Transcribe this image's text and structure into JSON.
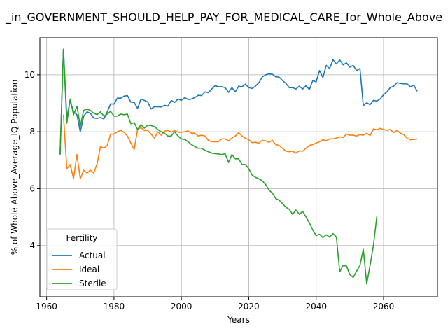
{
  "chart_data": {
    "type": "line",
    "title": "_in_GOVERNMENT_SHOULD_HELP_PAY_FOR_MEDICAL_CARE_for_Whole_Above",
    "xlabel": "Years",
    "ylabel": "% of Whole Above_Average_IQ Population",
    "xlim": [
      1958,
      2076
    ],
    "ylim": [
      2.2,
      11.3
    ],
    "xticks": [
      1960,
      1980,
      2000,
      2020,
      2040,
      2060
    ],
    "yticks": [
      4,
      6,
      8,
      10
    ],
    "grid": true,
    "legend": {
      "title": "Fertility",
      "position": "lower-left"
    },
    "series": [
      {
        "name": "Actual",
        "color": "#1f77b4",
        "points": [
          [
            1964,
            7.2
          ],
          [
            1965,
            10.9
          ],
          [
            1966,
            8.5
          ],
          [
            1967,
            9.1
          ],
          [
            1968,
            8.7
          ],
          [
            1969,
            8.6
          ],
          [
            1970,
            8.0
          ],
          [
            1971,
            8.55
          ],
          [
            1972,
            8.7
          ],
          [
            1973,
            8.65
          ],
          [
            1974,
            8.48
          ],
          [
            1975,
            8.47
          ],
          [
            1976,
            8.5
          ],
          [
            1977,
            8.45
          ],
          [
            1978,
            8.7
          ],
          [
            1979,
            8.98
          ],
          [
            1980,
            8.97
          ],
          [
            1981,
            9.18
          ],
          [
            1982,
            9.18
          ],
          [
            1983,
            9.25
          ],
          [
            1984,
            9.27
          ],
          [
            1985,
            9.04
          ],
          [
            1986,
            9.03
          ],
          [
            1987,
            8.82
          ],
          [
            1988,
            9.15
          ],
          [
            1989,
            9.1
          ],
          [
            1990,
            9.05
          ],
          [
            1991,
            8.8
          ],
          [
            1992,
            8.88
          ],
          [
            1993,
            8.88
          ],
          [
            1994,
            8.87
          ],
          [
            1995,
            8.93
          ],
          [
            1996,
            8.9
          ],
          [
            1997,
            9.1
          ],
          [
            1998,
            9.03
          ],
          [
            1999,
            9.15
          ],
          [
            2000,
            9.1
          ],
          [
            2001,
            9.2
          ],
          [
            2002,
            9.13
          ],
          [
            2003,
            9.15
          ],
          [
            2004,
            9.2
          ],
          [
            2005,
            9.28
          ],
          [
            2006,
            9.27
          ],
          [
            2007,
            9.4
          ],
          [
            2008,
            9.37
          ],
          [
            2009,
            9.5
          ],
          [
            2010,
            9.62
          ],
          [
            2011,
            9.58
          ],
          [
            2012,
            9.58
          ],
          [
            2013,
            9.55
          ],
          [
            2014,
            9.38
          ],
          [
            2015,
            9.55
          ],
          [
            2016,
            9.4
          ],
          [
            2017,
            9.6
          ],
          [
            2018,
            9.58
          ],
          [
            2019,
            9.67
          ],
          [
            2020,
            9.55
          ],
          [
            2021,
            9.52
          ],
          [
            2022,
            9.6
          ],
          [
            2023,
            9.72
          ],
          [
            2024,
            9.92
          ],
          [
            2025,
            10.0
          ],
          [
            2026,
            10.03
          ],
          [
            2027,
            10.02
          ],
          [
            2028,
            9.93
          ],
          [
            2029,
            9.92
          ],
          [
            2030,
            9.8
          ],
          [
            2031,
            9.7
          ],
          [
            2032,
            9.55
          ],
          [
            2033,
            9.55
          ],
          [
            2034,
            9.5
          ],
          [
            2035,
            9.6
          ],
          [
            2036,
            9.5
          ],
          [
            2037,
            9.62
          ],
          [
            2038,
            9.48
          ],
          [
            2039,
            9.8
          ],
          [
            2040,
            9.75
          ],
          [
            2041,
            10.15
          ],
          [
            2042,
            9.9
          ],
          [
            2043,
            10.33
          ],
          [
            2044,
            10.22
          ],
          [
            2045,
            10.53
          ],
          [
            2046,
            10.38
          ],
          [
            2047,
            10.52
          ],
          [
            2048,
            10.35
          ],
          [
            2049,
            10.42
          ],
          [
            2050,
            10.27
          ],
          [
            2051,
            10.33
          ],
          [
            2052,
            10.15
          ],
          [
            2053,
            10.22
          ],
          [
            2054,
            8.92
          ],
          [
            2055,
            9.02
          ],
          [
            2056,
            8.95
          ],
          [
            2057,
            9.1
          ],
          [
            2058,
            9.08
          ],
          [
            2059,
            9.15
          ],
          [
            2060,
            9.3
          ],
          [
            2061,
            9.4
          ],
          [
            2062,
            9.55
          ],
          [
            2063,
            9.6
          ],
          [
            2064,
            9.72
          ],
          [
            2065,
            9.7
          ],
          [
            2066,
            9.68
          ],
          [
            2067,
            9.68
          ],
          [
            2068,
            9.58
          ],
          [
            2069,
            9.63
          ],
          [
            2070,
            9.42
          ]
        ]
      },
      {
        "name": "Ideal",
        "color": "#ff7f0e",
        "points": [
          [
            1965,
            8.6
          ],
          [
            1966,
            6.7
          ],
          [
            1967,
            6.85
          ],
          [
            1968,
            6.35
          ],
          [
            1969,
            7.2
          ],
          [
            1970,
            6.35
          ],
          [
            1971,
            6.65
          ],
          [
            1972,
            6.55
          ],
          [
            1973,
            6.65
          ],
          [
            1974,
            6.55
          ],
          [
            1975,
            6.88
          ],
          [
            1976,
            7.48
          ],
          [
            1977,
            7.42
          ],
          [
            1978,
            7.52
          ],
          [
            1979,
            7.92
          ],
          [
            1980,
            7.92
          ],
          [
            1981,
            8.0
          ],
          [
            1982,
            8.05
          ],
          [
            1983,
            7.98
          ],
          [
            1984,
            7.85
          ],
          [
            1985,
            7.6
          ],
          [
            1986,
            7.38
          ],
          [
            1987,
            8.08
          ],
          [
            1988,
            8.15
          ],
          [
            1989,
            8.05
          ],
          [
            1990,
            8.05
          ],
          [
            1991,
            7.92
          ],
          [
            1992,
            7.78
          ],
          [
            1993,
            8.0
          ],
          [
            1994,
            7.88
          ],
          [
            1995,
            8.02
          ],
          [
            1996,
            8.05
          ],
          [
            1997,
            7.98
          ],
          [
            1998,
            8.05
          ],
          [
            1999,
            7.98
          ],
          [
            2000,
            7.98
          ],
          [
            2001,
            8.0
          ],
          [
            2002,
            8.03
          ],
          [
            2003,
            7.95
          ],
          [
            2004,
            7.95
          ],
          [
            2005,
            7.85
          ],
          [
            2006,
            7.88
          ],
          [
            2007,
            7.85
          ],
          [
            2008,
            7.7
          ],
          [
            2009,
            7.65
          ],
          [
            2010,
            7.65
          ],
          [
            2011,
            7.65
          ],
          [
            2012,
            7.75
          ],
          [
            2013,
            7.75
          ],
          [
            2014,
            7.68
          ],
          [
            2015,
            7.78
          ],
          [
            2016,
            7.85
          ],
          [
            2017,
            7.97
          ],
          [
            2018,
            7.85
          ],
          [
            2019,
            7.77
          ],
          [
            2020,
            7.72
          ],
          [
            2021,
            7.62
          ],
          [
            2022,
            7.63
          ],
          [
            2023,
            7.6
          ],
          [
            2024,
            7.7
          ],
          [
            2025,
            7.68
          ],
          [
            2026,
            7.63
          ],
          [
            2027,
            7.7
          ],
          [
            2028,
            7.55
          ],
          [
            2029,
            7.52
          ],
          [
            2030,
            7.42
          ],
          [
            2031,
            7.32
          ],
          [
            2032,
            7.3
          ],
          [
            2033,
            7.32
          ],
          [
            2034,
            7.25
          ],
          [
            2035,
            7.33
          ],
          [
            2036,
            7.32
          ],
          [
            2037,
            7.42
          ],
          [
            2038,
            7.52
          ],
          [
            2039,
            7.55
          ],
          [
            2040,
            7.6
          ],
          [
            2041,
            7.65
          ],
          [
            2042,
            7.72
          ],
          [
            2043,
            7.68
          ],
          [
            2044,
            7.75
          ],
          [
            2045,
            7.75
          ],
          [
            2046,
            7.78
          ],
          [
            2047,
            7.82
          ],
          [
            2048,
            7.8
          ],
          [
            2049,
            7.92
          ],
          [
            2050,
            7.88
          ],
          [
            2051,
            7.88
          ],
          [
            2052,
            7.85
          ],
          [
            2053,
            7.9
          ],
          [
            2054,
            7.88
          ],
          [
            2055,
            7.95
          ],
          [
            2056,
            7.87
          ],
          [
            2057,
            8.1
          ],
          [
            2058,
            8.07
          ],
          [
            2059,
            8.12
          ],
          [
            2060,
            8.08
          ],
          [
            2061,
            8.05
          ],
          [
            2062,
            8.08
          ],
          [
            2063,
            7.97
          ],
          [
            2064,
            8.05
          ],
          [
            2065,
            7.95
          ],
          [
            2066,
            7.9
          ],
          [
            2067,
            7.77
          ],
          [
            2068,
            7.72
          ],
          [
            2069,
            7.73
          ],
          [
            2070,
            7.75
          ]
        ]
      },
      {
        "name": "Sterile",
        "color": "#2ca02c",
        "points": [
          [
            1964,
            7.2
          ],
          [
            1965,
            10.9
          ],
          [
            1966,
            8.3
          ],
          [
            1967,
            9.15
          ],
          [
            1968,
            8.6
          ],
          [
            1969,
            8.9
          ],
          [
            1970,
            8.2
          ],
          [
            1971,
            8.75
          ],
          [
            1972,
            8.8
          ],
          [
            1973,
            8.75
          ],
          [
            1974,
            8.65
          ],
          [
            1975,
            8.6
          ],
          [
            1976,
            8.7
          ],
          [
            1977,
            8.55
          ],
          [
            1978,
            8.62
          ],
          [
            1979,
            8.72
          ],
          [
            1980,
            8.55
          ],
          [
            1981,
            8.55
          ],
          [
            1982,
            8.62
          ],
          [
            1983,
            8.6
          ],
          [
            1984,
            8.62
          ],
          [
            1985,
            8.28
          ],
          [
            1986,
            8.32
          ],
          [
            1987,
            8.08
          ],
          [
            1988,
            8.25
          ],
          [
            1989,
            8.13
          ],
          [
            1990,
            8.23
          ],
          [
            1991,
            8.22
          ],
          [
            1992,
            8.18
          ],
          [
            1993,
            8.08
          ],
          [
            1994,
            8.0
          ],
          [
            1995,
            7.95
          ],
          [
            1996,
            7.85
          ],
          [
            1997,
            7.85
          ],
          [
            1998,
            8.0
          ],
          [
            1999,
            7.85
          ],
          [
            2000,
            7.75
          ],
          [
            2001,
            7.73
          ],
          [
            2002,
            7.65
          ],
          [
            2003,
            7.55
          ],
          [
            2004,
            7.48
          ],
          [
            2005,
            7.42
          ],
          [
            2006,
            7.42
          ],
          [
            2007,
            7.35
          ],
          [
            2008,
            7.3
          ],
          [
            2009,
            7.25
          ],
          [
            2010,
            7.23
          ],
          [
            2011,
            7.22
          ],
          [
            2012,
            7.2
          ],
          [
            2013,
            7.23
          ],
          [
            2014,
            6.92
          ],
          [
            2015,
            7.2
          ],
          [
            2016,
            7.05
          ],
          [
            2017,
            7.05
          ],
          [
            2018,
            6.85
          ],
          [
            2019,
            6.85
          ],
          [
            2020,
            6.7
          ],
          [
            2021,
            6.48
          ],
          [
            2022,
            6.4
          ],
          [
            2023,
            6.35
          ],
          [
            2024,
            6.28
          ],
          [
            2025,
            6.15
          ],
          [
            2026,
            5.95
          ],
          [
            2027,
            5.85
          ],
          [
            2028,
            5.65
          ],
          [
            2029,
            5.6
          ],
          [
            2030,
            5.48
          ],
          [
            2031,
            5.35
          ],
          [
            2032,
            5.28
          ],
          [
            2033,
            5.1
          ],
          [
            2034,
            5.25
          ],
          [
            2035,
            5.1
          ],
          [
            2036,
            5.2
          ],
          [
            2037,
            5.0
          ],
          [
            2038,
            4.8
          ],
          [
            2039,
            4.55
          ],
          [
            2040,
            4.35
          ],
          [
            2041,
            4.4
          ],
          [
            2042,
            4.28
          ],
          [
            2043,
            4.38
          ],
          [
            2044,
            4.3
          ],
          [
            2045,
            4.42
          ],
          [
            2046,
            4.3
          ],
          [
            2047,
            3.08
          ],
          [
            2048,
            3.3
          ],
          [
            2049,
            3.28
          ],
          [
            2050,
            2.98
          ],
          [
            2051,
            2.88
          ],
          [
            2052,
            3.1
          ],
          [
            2053,
            3.3
          ],
          [
            2054,
            3.87
          ],
          [
            2055,
            2.65
          ],
          [
            2056,
            3.3
          ],
          [
            2057,
            4.0
          ],
          [
            2058,
            5.02
          ]
        ]
      }
    ]
  }
}
